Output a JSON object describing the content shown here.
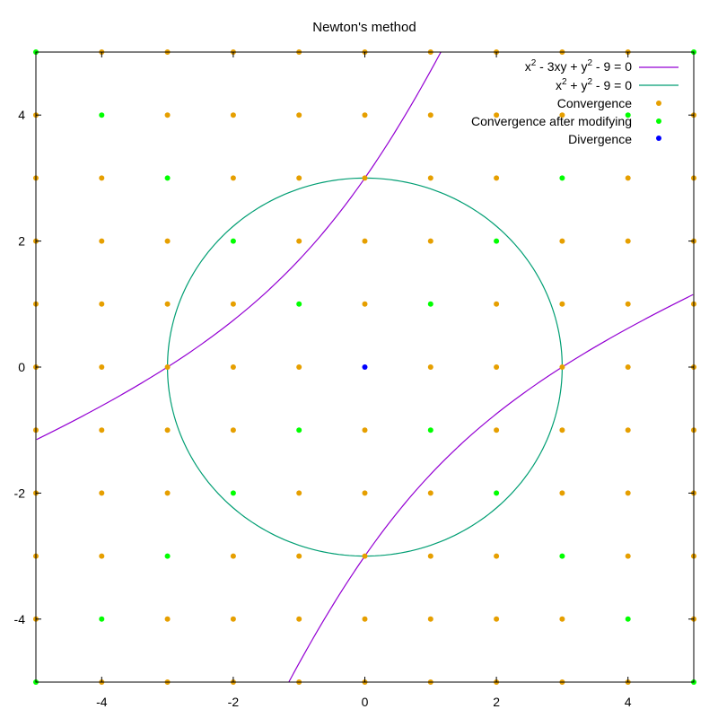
{
  "chart_data": {
    "type": "scatter",
    "title": "Newton's method",
    "xlabel": "",
    "ylabel": "",
    "xlim": [
      -5,
      5
    ],
    "ylim": [
      -5,
      5
    ],
    "grid": false,
    "legend_position": "top-right",
    "x_ticks": [
      "-4",
      "-2",
      "0",
      "2",
      "4"
    ],
    "y_ticks": [
      "-4",
      "-2",
      "0",
      "2",
      "4"
    ],
    "colors": {
      "curve1": "#9400d3",
      "curve2": "#009e73",
      "convergence": "#e69f00",
      "modified": "#00ff00",
      "divergence": "#0000ff"
    },
    "curves": [
      {
        "name_parts": {
          "base": "x",
          "sup1": "2",
          "mid": " - 3xy + y",
          "sup2": "2",
          "end": " - 9 = 0"
        },
        "equation": "x^2 - 3xy + y^2 - 9 = 0"
      },
      {
        "name_parts": {
          "base": "x",
          "sup1": "2",
          "mid": " + y",
          "sup2": "2",
          "end": " - 9 = 0"
        },
        "equation": "x^2 + y^2 - 9 = 0"
      }
    ],
    "series": [
      {
        "name": "Convergence",
        "points": [
          [
            -4,
            5
          ],
          [
            -3,
            5
          ],
          [
            -2,
            5
          ],
          [
            -1,
            5
          ],
          [
            0,
            5
          ],
          [
            1,
            5
          ],
          [
            2,
            5
          ],
          [
            3,
            5
          ],
          [
            4,
            5
          ],
          [
            -5,
            4
          ],
          [
            -3,
            4
          ],
          [
            -2,
            4
          ],
          [
            -1,
            4
          ],
          [
            0,
            4
          ],
          [
            1,
            4
          ],
          [
            2,
            4
          ],
          [
            3,
            4
          ],
          [
            5,
            4
          ],
          [
            -5,
            3
          ],
          [
            -4,
            3
          ],
          [
            -2,
            3
          ],
          [
            -1,
            3
          ],
          [
            0,
            3
          ],
          [
            1,
            3
          ],
          [
            2,
            3
          ],
          [
            4,
            3
          ],
          [
            5,
            3
          ],
          [
            -5,
            2
          ],
          [
            -4,
            2
          ],
          [
            -3,
            2
          ],
          [
            -1,
            2
          ],
          [
            0,
            2
          ],
          [
            1,
            2
          ],
          [
            3,
            2
          ],
          [
            4,
            2
          ],
          [
            5,
            2
          ],
          [
            -5,
            1
          ],
          [
            -4,
            1
          ],
          [
            -3,
            1
          ],
          [
            -2,
            1
          ],
          [
            0,
            1
          ],
          [
            2,
            1
          ],
          [
            3,
            1
          ],
          [
            4,
            1
          ],
          [
            5,
            1
          ],
          [
            -5,
            0
          ],
          [
            -4,
            0
          ],
          [
            -3,
            0
          ],
          [
            -2,
            0
          ],
          [
            -1,
            0
          ],
          [
            1,
            0
          ],
          [
            2,
            0
          ],
          [
            3,
            0
          ],
          [
            4,
            0
          ],
          [
            5,
            0
          ],
          [
            -5,
            -1
          ],
          [
            -4,
            -1
          ],
          [
            -3,
            -1
          ],
          [
            -2,
            -1
          ],
          [
            0,
            -1
          ],
          [
            2,
            -1
          ],
          [
            3,
            -1
          ],
          [
            4,
            -1
          ],
          [
            5,
            -1
          ],
          [
            -5,
            -2
          ],
          [
            -4,
            -2
          ],
          [
            -3,
            -2
          ],
          [
            -1,
            -2
          ],
          [
            0,
            -2
          ],
          [
            1,
            -2
          ],
          [
            3,
            -2
          ],
          [
            4,
            -2
          ],
          [
            5,
            -2
          ],
          [
            -5,
            -3
          ],
          [
            -4,
            -3
          ],
          [
            -2,
            -3
          ],
          [
            -1,
            -3
          ],
          [
            0,
            -3
          ],
          [
            1,
            -3
          ],
          [
            2,
            -3
          ],
          [
            4,
            -3
          ],
          [
            5,
            -3
          ],
          [
            -5,
            -4
          ],
          [
            -3,
            -4
          ],
          [
            -2,
            -4
          ],
          [
            -1,
            -4
          ],
          [
            0,
            -4
          ],
          [
            1,
            -4
          ],
          [
            2,
            -4
          ],
          [
            3,
            -4
          ],
          [
            5,
            -4
          ],
          [
            -4,
            -5
          ],
          [
            -3,
            -5
          ],
          [
            -2,
            -5
          ],
          [
            -1,
            -5
          ],
          [
            0,
            -5
          ],
          [
            1,
            -5
          ],
          [
            2,
            -5
          ],
          [
            3,
            -5
          ],
          [
            4,
            -5
          ]
        ]
      },
      {
        "name": "Convergence after modifying",
        "points": [
          [
            -5,
            5
          ],
          [
            5,
            5
          ],
          [
            -4,
            4
          ],
          [
            4,
            4
          ],
          [
            -3,
            3
          ],
          [
            3,
            3
          ],
          [
            -2,
            2
          ],
          [
            2,
            2
          ],
          [
            -1,
            1
          ],
          [
            1,
            1
          ],
          [
            -1,
            -1
          ],
          [
            1,
            -1
          ],
          [
            -2,
            -2
          ],
          [
            2,
            -2
          ],
          [
            -3,
            -3
          ],
          [
            3,
            -3
          ],
          [
            -4,
            -4
          ],
          [
            4,
            -4
          ],
          [
            -5,
            -5
          ],
          [
            5,
            -5
          ]
        ]
      },
      {
        "name": "Divergence",
        "points": [
          [
            0,
            0
          ]
        ]
      }
    ]
  }
}
